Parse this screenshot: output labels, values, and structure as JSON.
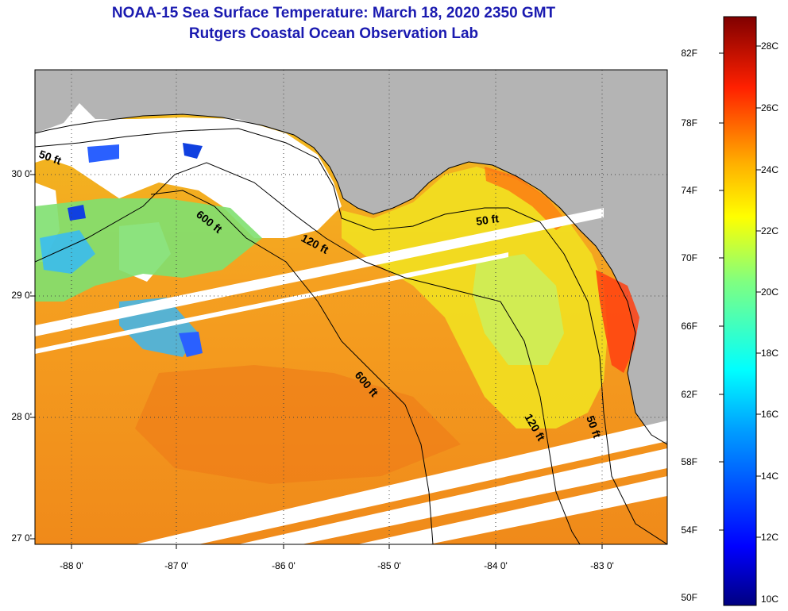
{
  "title": {
    "line1": "NOAA-15 Sea Surface Temperature:  March 18, 2020 2350 GMT",
    "line2": "Rutgers Coastal Ocean Observation Lab"
  },
  "map": {
    "lat_labels": [
      "30 0'",
      "29 0'",
      "28 0'",
      "27 0'"
    ],
    "lon_labels": [
      "-88 0'",
      "-87 0'",
      "-86 0'",
      "-85 0'",
      "-84 0'",
      "-83 0'"
    ],
    "contour_labels": [
      "50 ft",
      "600 ft",
      "120 ft",
      "50 ft",
      "600 ft",
      "120 ft",
      "50 ft"
    ],
    "colors": {
      "land": "#b4b4b4",
      "cloud": "#ffffff",
      "warm": "#f08a1a"
    }
  },
  "colorbar": {
    "fahrenheit": [
      "82F",
      "78F",
      "74F",
      "70F",
      "66F",
      "62F",
      "58F",
      "54F",
      "50F"
    ],
    "celsius": [
      "28C",
      "26C",
      "24C",
      "22C",
      "20C",
      "18C",
      "16C",
      "14C",
      "12C",
      "10C"
    ]
  }
}
